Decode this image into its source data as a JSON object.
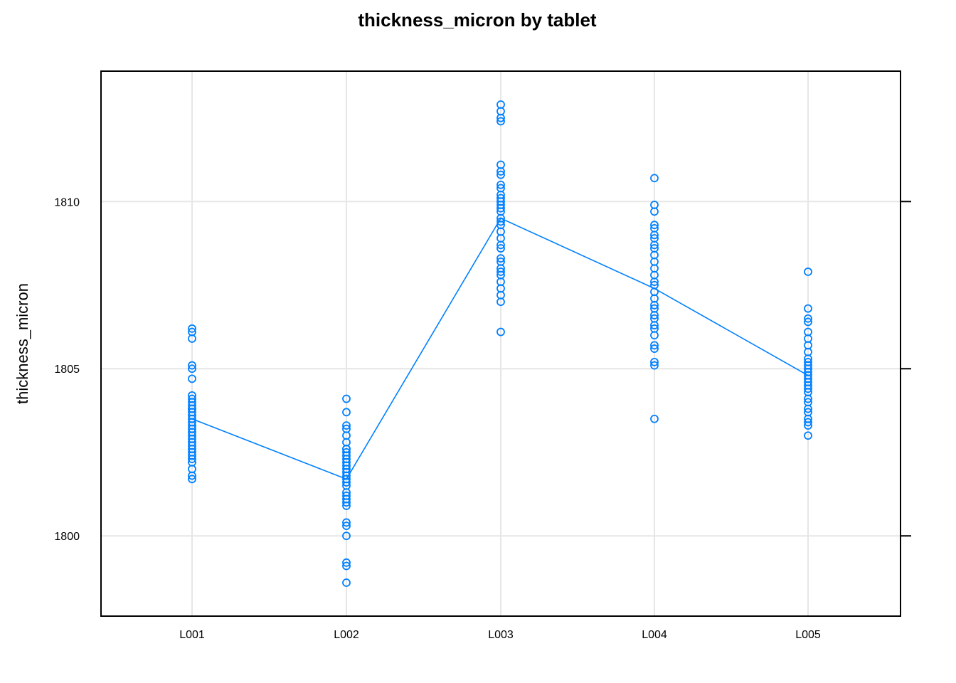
{
  "chart_data": {
    "type": "scatter",
    "title": "thickness_micron by tablet",
    "xlabel": "",
    "ylabel": "thickness_micron",
    "categories": [
      "L001",
      "L002",
      "L003",
      "L004",
      "L005"
    ],
    "yticks": [
      1800,
      1805,
      1810
    ],
    "ylim": [
      1797.6,
      1813.9
    ],
    "grid": true,
    "legend": "none",
    "color": "#0080ff",
    "series": [
      {
        "category": "L001",
        "values": [
          1806.2,
          1806.1,
          1805.9,
          1805.1,
          1805.0,
          1804.7,
          1804.2,
          1804.1,
          1804.0,
          1803.9,
          1803.8,
          1803.8,
          1803.7,
          1803.6,
          1803.5,
          1803.4,
          1803.3,
          1803.2,
          1803.1,
          1803.0,
          1802.9,
          1802.8,
          1802.7,
          1802.6,
          1802.5,
          1802.4,
          1802.3,
          1802.2,
          1802.0,
          1801.8,
          1801.7
        ],
        "mean": 1803.5
      },
      {
        "category": "L002",
        "values": [
          1804.1,
          1803.7,
          1803.3,
          1803.2,
          1803.0,
          1802.8,
          1802.6,
          1802.6,
          1802.5,
          1802.4,
          1802.3,
          1802.2,
          1802.1,
          1802.0,
          1801.9,
          1801.8,
          1801.7,
          1801.6,
          1801.5,
          1801.3,
          1801.2,
          1801.1,
          1801.0,
          1800.9,
          1800.4,
          1800.3,
          1800.0,
          1799.2,
          1799.1,
          1798.6
        ],
        "mean": 1801.7
      },
      {
        "category": "L003",
        "values": [
          1812.9,
          1812.7,
          1812.5,
          1812.4,
          1811.1,
          1810.9,
          1810.8,
          1810.5,
          1810.4,
          1810.2,
          1810.1,
          1810.0,
          1809.9,
          1809.8,
          1809.7,
          1809.5,
          1809.4,
          1809.3,
          1809.1,
          1808.9,
          1808.7,
          1808.6,
          1808.3,
          1808.2,
          1808.0,
          1807.9,
          1807.8,
          1807.6,
          1807.4,
          1807.2,
          1807.0,
          1806.1
        ],
        "mean": 1809.5
      },
      {
        "category": "L004",
        "values": [
          1810.7,
          1809.9,
          1809.7,
          1809.3,
          1809.2,
          1809.0,
          1808.9,
          1808.7,
          1808.6,
          1808.4,
          1808.2,
          1808.0,
          1807.8,
          1807.6,
          1807.5,
          1807.3,
          1807.1,
          1806.9,
          1806.8,
          1806.6,
          1806.5,
          1806.3,
          1806.2,
          1806.0,
          1805.7,
          1805.6,
          1805.2,
          1805.1,
          1803.5
        ],
        "mean": 1807.4
      },
      {
        "category": "L005",
        "values": [
          1807.9,
          1806.8,
          1806.5,
          1806.4,
          1806.1,
          1805.9,
          1805.7,
          1805.5,
          1805.3,
          1805.2,
          1805.1,
          1805.0,
          1804.9,
          1804.8,
          1804.7,
          1804.6,
          1804.5,
          1804.4,
          1804.3,
          1804.1,
          1804.0,
          1803.8,
          1803.7,
          1803.5,
          1803.4,
          1803.3,
          1803.0
        ],
        "mean": 1804.8
      }
    ]
  }
}
